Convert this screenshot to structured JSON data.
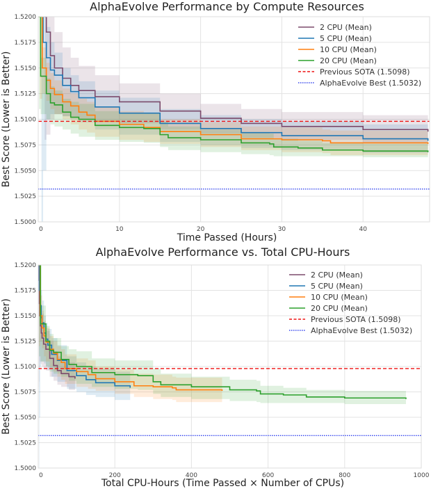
{
  "chart_data": [
    {
      "type": "line",
      "title": "AlphaEvolve Performance by Compute Resources",
      "xlabel": "Time Passed (Hours)",
      "ylabel": "Best Score (Lower is Better)",
      "x_mode": "hours",
      "xlim": [
        0,
        48.2
      ],
      "ylim": [
        1.5,
        1.52
      ],
      "xticks": [
        0,
        10,
        20,
        30,
        40
      ],
      "xtick_labels": [
        "0",
        "10",
        "20",
        "30",
        "40"
      ],
      "yticks": [
        1.5,
        1.5025,
        1.505,
        1.5075,
        1.51,
        1.5125,
        1.515,
        1.5175,
        1.52
      ],
      "ytick_labels": [
        "1.5000",
        "1.5025",
        "1.5050",
        "1.5075",
        "1.5100",
        "1.5125",
        "1.5150",
        "1.5175",
        "1.5200"
      ],
      "grid": true,
      "legend_position": "top-right"
    },
    {
      "type": "line",
      "title": "AlphaEvolve Performance vs. Total CPU-Hours",
      "xlabel": "Total CPU-Hours (Time Passed × Number of CPUs)",
      "ylabel": "Best Score (Lower is Better)",
      "x_mode": "cpu_hours",
      "xlim": [
        0,
        1000
      ],
      "ylim": [
        1.5,
        1.52
      ],
      "xticks": [
        0,
        200,
        400,
        600,
        800,
        1000
      ],
      "xtick_labels": [
        "0",
        "200",
        "400",
        "600",
        "800",
        "1000"
      ],
      "yticks": [
        1.5,
        1.5025,
        1.505,
        1.5075,
        1.51,
        1.5125,
        1.515,
        1.5175,
        1.52
      ],
      "ytick_labels": [
        "1.5000",
        "1.5025",
        "1.5050",
        "1.5075",
        "1.5100",
        "1.5125",
        "1.5150",
        "1.5175",
        "1.5200"
      ],
      "grid": true,
      "legend_position": "top-right"
    }
  ],
  "series": [
    {
      "name": "2 CPU (Mean)",
      "cpus": 2,
      "color": "#7b4a6b",
      "hours": [
        0.8,
        1,
        1.5,
        2,
        3,
        4,
        5,
        7,
        10,
        15,
        20,
        25,
        30,
        40,
        48
      ],
      "mean": [
        1.52,
        1.5185,
        1.5162,
        1.515,
        1.514,
        1.5133,
        1.5128,
        1.5122,
        1.5117,
        1.5108,
        1.5101,
        1.5096,
        1.5093,
        1.509,
        1.5088
      ],
      "upper": [
        1.52,
        1.52,
        1.52,
        1.5185,
        1.517,
        1.516,
        1.5152,
        1.5143,
        1.5135,
        1.5125,
        1.5115,
        1.511,
        1.5107,
        1.5104,
        1.5103
      ],
      "lower": [
        1.508,
        1.5085,
        1.51,
        1.5105,
        1.5103,
        1.5102,
        1.51,
        1.5098,
        1.5096,
        1.509,
        1.5086,
        1.5082,
        1.508,
        1.5077,
        1.5075
      ]
    },
    {
      "name": "5 CPU (Mean)",
      "cpus": 5,
      "color": "#1f77b4",
      "hours": [
        0.4,
        0.6,
        1,
        1.5,
        2,
        3,
        4,
        5,
        7,
        10,
        15,
        20,
        25,
        30,
        40,
        48
      ],
      "mean": [
        1.52,
        1.5175,
        1.516,
        1.5148,
        1.5143,
        1.5133,
        1.5127,
        1.5121,
        1.5112,
        1.5106,
        1.5096,
        1.5091,
        1.5087,
        1.5084,
        1.5081,
        1.5079
      ],
      "upper": [
        1.52,
        1.52,
        1.519,
        1.5175,
        1.5165,
        1.515,
        1.5143,
        1.5137,
        1.5128,
        1.5121,
        1.511,
        1.5104,
        1.51,
        1.5098,
        1.5095,
        1.5093
      ],
      "lower": [
        1.5,
        1.505,
        1.51,
        1.5105,
        1.5105,
        1.5103,
        1.51,
        1.5097,
        1.509,
        1.5085,
        1.5078,
        1.5075,
        1.5072,
        1.507,
        1.5067,
        1.5065
      ]
    },
    {
      "name": "10 CPU (Mean)",
      "cpus": 10,
      "color": "#ff7f0e",
      "hours": [
        0.2,
        0.5,
        1,
        1.5,
        2,
        3,
        4,
        5,
        6,
        7,
        10,
        13,
        15,
        20,
        25,
        30,
        35,
        36,
        48
      ],
      "mean": [
        1.52,
        1.515,
        1.5138,
        1.513,
        1.5124,
        1.5117,
        1.5113,
        1.5107,
        1.5104,
        1.5098,
        1.5095,
        1.5092,
        1.5088,
        1.5085,
        1.5081,
        1.508,
        1.5079,
        1.5077,
        1.5076
      ],
      "upper": [
        1.52,
        1.517,
        1.5155,
        1.5145,
        1.5138,
        1.513,
        1.5125,
        1.512,
        1.5117,
        1.5112,
        1.5108,
        1.5106,
        1.51,
        1.5097,
        1.5093,
        1.5092,
        1.509,
        1.5089,
        1.5088
      ],
      "lower": [
        1.512,
        1.5125,
        1.5118,
        1.511,
        1.5105,
        1.51,
        1.5095,
        1.509,
        1.5087,
        1.5083,
        1.508,
        1.5078,
        1.5076,
        1.5073,
        1.507,
        1.5068,
        1.5067,
        1.5065,
        1.5065
      ]
    },
    {
      "name": "20 CPU (Mean)",
      "cpus": 20,
      "color": "#2ca02c",
      "hours": [
        0.1,
        0.3,
        1,
        1.5,
        2,
        3,
        4,
        5,
        7,
        10,
        13,
        15,
        16,
        20,
        25,
        28.5,
        29,
        32,
        35,
        40,
        48
      ],
      "mean": [
        1.52,
        1.5142,
        1.5125,
        1.5116,
        1.5114,
        1.5107,
        1.5102,
        1.51,
        1.5094,
        1.5092,
        1.5091,
        1.5085,
        1.5082,
        1.508,
        1.5077,
        1.5076,
        1.5073,
        1.5072,
        1.507,
        1.5069,
        1.5068
      ],
      "upper": [
        1.52,
        1.516,
        1.514,
        1.5132,
        1.5128,
        1.512,
        1.5117,
        1.5115,
        1.5108,
        1.5106,
        1.5106,
        1.5098,
        1.5093,
        1.509,
        1.5087,
        1.5086,
        1.5081,
        1.5079,
        1.5077,
        1.5076,
        1.5075
      ],
      "lower": [
        1.511,
        1.5105,
        1.51,
        1.5095,
        1.5093,
        1.509,
        1.5086,
        1.5083,
        1.508,
        1.5078,
        1.5077,
        1.5073,
        1.507,
        1.5068,
        1.5066,
        1.5065,
        1.5064,
        1.5064,
        1.5064,
        1.5063,
        1.5063
      ]
    }
  ],
  "reference_lines": [
    {
      "name": "Previous SOTA (1.5098)",
      "value": 1.5098,
      "color": "#ee1111",
      "style": "dashed"
    },
    {
      "name": "AlphaEvolve Best (1.5032)",
      "value": 1.5032,
      "color": "#3344ee",
      "style": "dotted"
    }
  ]
}
